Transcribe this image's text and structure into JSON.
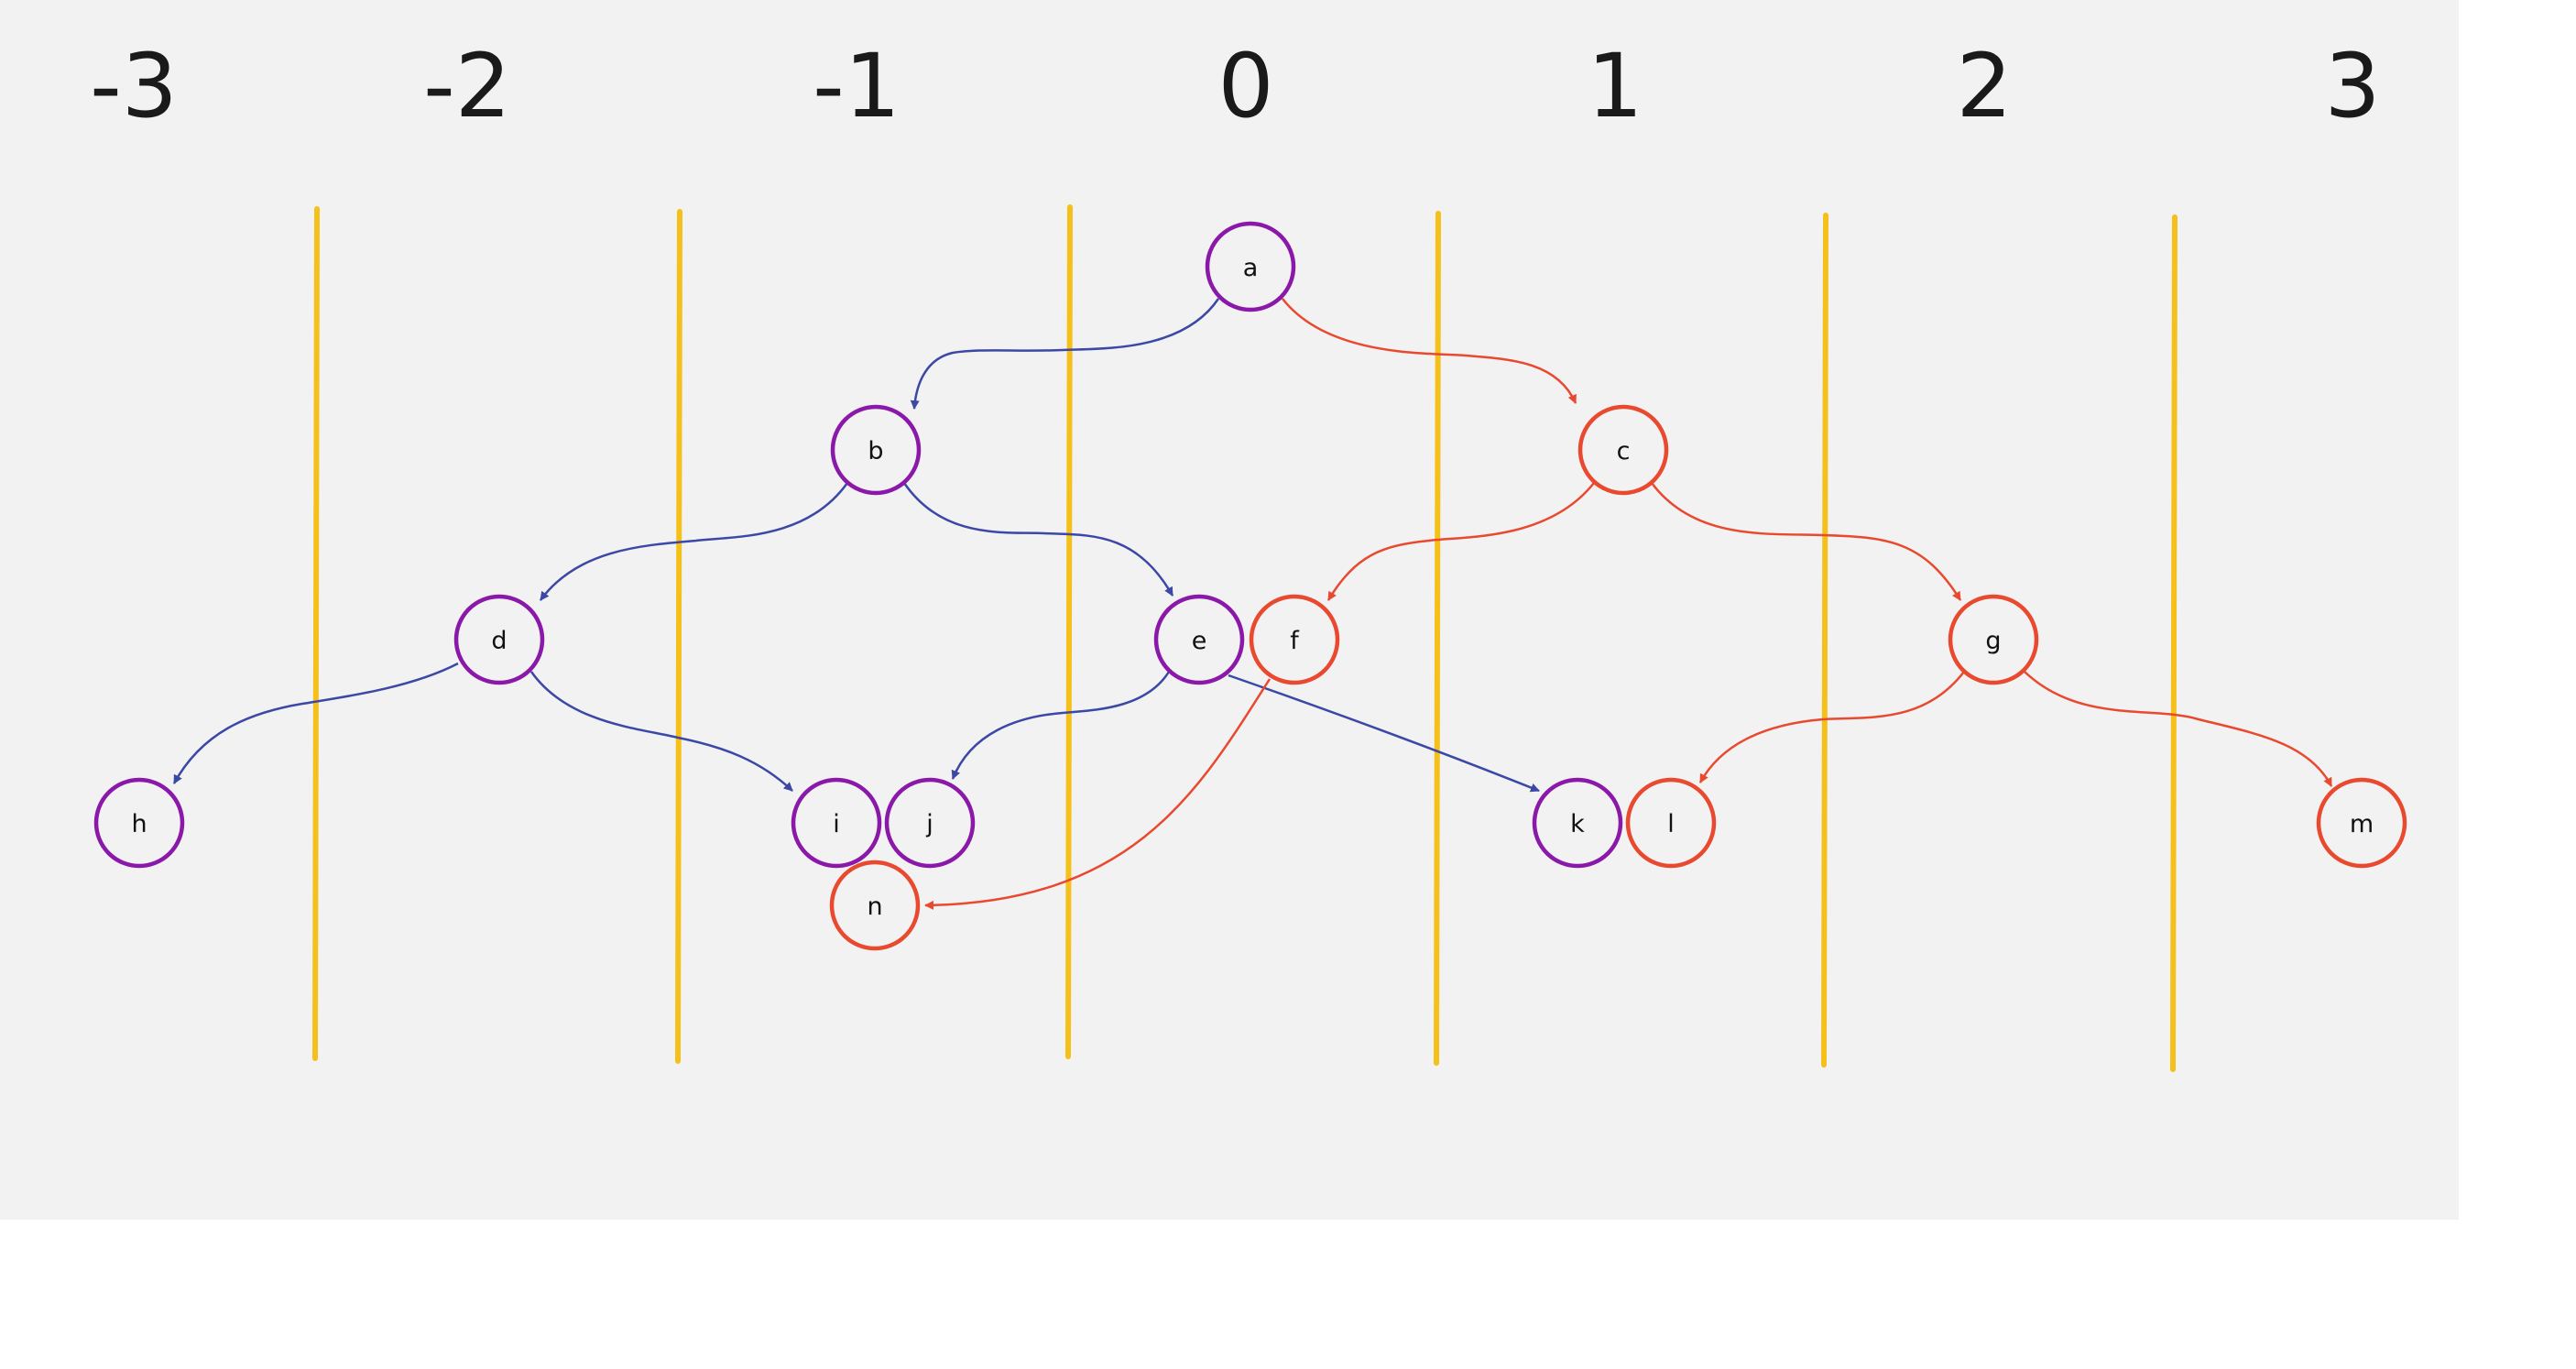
{
  "colors": {
    "background": "#f2f2f2",
    "divider": "#f5c01a",
    "purple_node": "#8a18a8",
    "red_node": "#e8492f",
    "blue_edge": "#3b48a6",
    "red_edge": "#e8492f"
  },
  "columns": [
    "-3",
    "-2",
    "-1",
    "0",
    "1",
    "2",
    "3"
  ],
  "nodes": [
    {
      "id": "a",
      "label": "a",
      "color": "purple"
    },
    {
      "id": "b",
      "label": "b",
      "color": "purple"
    },
    {
      "id": "c",
      "label": "c",
      "color": "red"
    },
    {
      "id": "d",
      "label": "d",
      "color": "purple"
    },
    {
      "id": "e",
      "label": "e",
      "color": "purple"
    },
    {
      "id": "f",
      "label": "f",
      "color": "red"
    },
    {
      "id": "g",
      "label": "g",
      "color": "red"
    },
    {
      "id": "h",
      "label": "h",
      "color": "purple"
    },
    {
      "id": "i",
      "label": "i",
      "color": "purple"
    },
    {
      "id": "j",
      "label": "j",
      "color": "purple"
    },
    {
      "id": "k",
      "label": "k",
      "color": "purple"
    },
    {
      "id": "l",
      "label": "l",
      "color": "red"
    },
    {
      "id": "m",
      "label": "m",
      "color": "red"
    },
    {
      "id": "n",
      "label": "n",
      "color": "red"
    }
  ],
  "edges": [
    {
      "from": "a",
      "to": "b",
      "color": "blue"
    },
    {
      "from": "a",
      "to": "c",
      "color": "red"
    },
    {
      "from": "b",
      "to": "d",
      "color": "blue"
    },
    {
      "from": "b",
      "to": "e",
      "color": "blue"
    },
    {
      "from": "c",
      "to": "f",
      "color": "red"
    },
    {
      "from": "c",
      "to": "g",
      "color": "red"
    },
    {
      "from": "d",
      "to": "h",
      "color": "blue"
    },
    {
      "from": "d",
      "to": "i",
      "color": "blue"
    },
    {
      "from": "e",
      "to": "j",
      "color": "blue"
    },
    {
      "from": "e",
      "to": "k",
      "color": "blue"
    },
    {
      "from": "f",
      "to": "n",
      "color": "red"
    },
    {
      "from": "g",
      "to": "l",
      "color": "red"
    },
    {
      "from": "g",
      "to": "m",
      "color": "red"
    }
  ]
}
